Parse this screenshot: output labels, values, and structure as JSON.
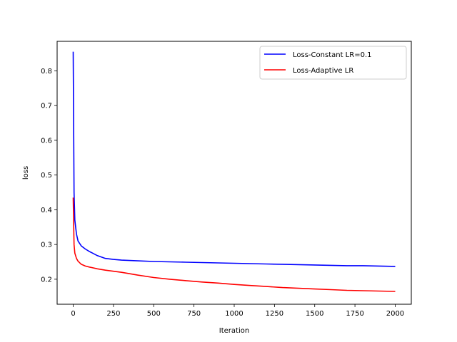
{
  "chart_data": {
    "type": "line",
    "title": "",
    "xlabel": "Iteration",
    "ylabel": "loss",
    "xlim": [
      -100,
      2100
    ],
    "ylim": [
      0.128,
      0.885
    ],
    "xticks": [
      0,
      250,
      500,
      750,
      1000,
      1250,
      1500,
      1750,
      2000
    ],
    "xtick_labels": [
      "0",
      "250",
      "500",
      "750",
      "1000",
      "1250",
      "1500",
      "1750",
      "2000"
    ],
    "yticks": [
      0.2,
      0.3,
      0.4,
      0.5,
      0.6,
      0.7,
      0.8
    ],
    "ytick_labels": [
      "0.2",
      "0.3",
      "0.4",
      "0.5",
      "0.6",
      "0.7",
      "0.8"
    ],
    "grid": false,
    "legend_position": "top-right",
    "series": [
      {
        "name": "Loss-Constant LR=0.1",
        "color": "#0000ff",
        "x": [
          0,
          5,
          10,
          20,
          30,
          50,
          75,
          100,
          150,
          200,
          250,
          300,
          400,
          500,
          600,
          700,
          800,
          900,
          1000,
          1100,
          1200,
          1300,
          1400,
          1500,
          1600,
          1700,
          1800,
          1900,
          2000
        ],
        "y": [
          0.855,
          0.45,
          0.37,
          0.33,
          0.31,
          0.296,
          0.287,
          0.28,
          0.268,
          0.26,
          0.257,
          0.255,
          0.253,
          0.251,
          0.25,
          0.249,
          0.248,
          0.247,
          0.246,
          0.245,
          0.244,
          0.243,
          0.242,
          0.241,
          0.24,
          0.239,
          0.239,
          0.238,
          0.237
        ]
      },
      {
        "name": "Loss-Adaptive LR",
        "color": "#ff0000",
        "x": [
          0,
          5,
          10,
          20,
          30,
          50,
          75,
          100,
          150,
          200,
          250,
          300,
          400,
          500,
          600,
          700,
          800,
          900,
          1000,
          1100,
          1200,
          1300,
          1400,
          1500,
          1600,
          1700,
          1800,
          1900,
          2000
        ],
        "y": [
          0.435,
          0.3,
          0.275,
          0.26,
          0.252,
          0.243,
          0.238,
          0.235,
          0.23,
          0.226,
          0.223,
          0.22,
          0.212,
          0.205,
          0.2,
          0.196,
          0.192,
          0.189,
          0.185,
          0.182,
          0.179,
          0.176,
          0.174,
          0.172,
          0.17,
          0.168,
          0.167,
          0.166,
          0.165
        ]
      }
    ]
  }
}
